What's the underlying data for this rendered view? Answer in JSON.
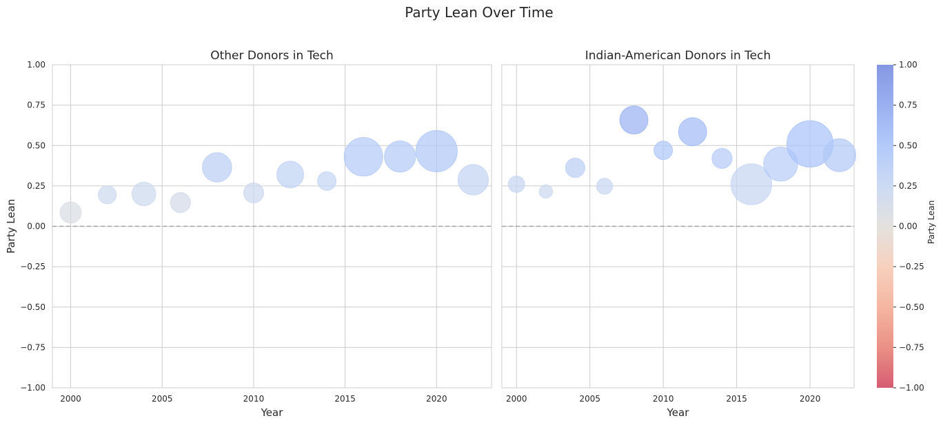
{
  "suptitle": "Party Lean Over Time",
  "colorbar": {
    "label": "Party Lean",
    "range": [
      -1,
      1
    ],
    "ticks": [
      "1.00",
      "0.75",
      "0.50",
      "0.25",
      "0.00",
      "−0.25",
      "−0.50",
      "−0.75",
      "−1.00"
    ],
    "colormap": "coolwarm_r"
  },
  "chart_data": [
    {
      "type": "scatter",
      "title": "Other Donors in Tech",
      "xlabel": "Year",
      "ylabel": "Party Lean",
      "xlim": [
        1999,
        2023
      ],
      "ylim": [
        -1,
        1
      ],
      "grid": true,
      "reference_line_y": 0,
      "xticks": [
        "2000",
        "2005",
        "2010",
        "2015",
        "2020"
      ],
      "yticks": [
        "1.00",
        "0.75",
        "0.50",
        "0.25",
        "0.00",
        "−0.25",
        "−0.50",
        "−0.75",
        "−1.00"
      ],
      "points": [
        {
          "x": 2000,
          "y": 0.085,
          "size": 0.3
        },
        {
          "x": 2002,
          "y": 0.195,
          "size": 0.22
        },
        {
          "x": 2004,
          "y": 0.2,
          "size": 0.38
        },
        {
          "x": 2006,
          "y": 0.147,
          "size": 0.27
        },
        {
          "x": 2008,
          "y": 0.365,
          "size": 0.58
        },
        {
          "x": 2010,
          "y": 0.207,
          "size": 0.27
        },
        {
          "x": 2012,
          "y": 0.32,
          "size": 0.48
        },
        {
          "x": 2014,
          "y": 0.28,
          "size": 0.23
        },
        {
          "x": 2016,
          "y": 0.43,
          "size": 1.0
        },
        {
          "x": 2018,
          "y": 0.432,
          "size": 0.65
        },
        {
          "x": 2020,
          "y": 0.465,
          "size": 1.15
        },
        {
          "x": 2022,
          "y": 0.288,
          "size": 0.62
        }
      ]
    },
    {
      "type": "scatter",
      "title": "Indian-American Donors in Tech",
      "xlabel": "Year",
      "ylabel": "",
      "xlim": [
        1999,
        2023
      ],
      "ylim": [
        -1,
        1
      ],
      "grid": true,
      "reference_line_y": 0,
      "xticks": [
        "2000",
        "2005",
        "2010",
        "2015",
        "2020"
      ],
      "points": [
        {
          "x": 2000,
          "y": 0.26,
          "size": 0.18
        },
        {
          "x": 2002,
          "y": 0.215,
          "size": 0.12
        },
        {
          "x": 2004,
          "y": 0.362,
          "size": 0.25
        },
        {
          "x": 2006,
          "y": 0.248,
          "size": 0.17
        },
        {
          "x": 2008,
          "y": 0.658,
          "size": 0.53
        },
        {
          "x": 2010,
          "y": 0.47,
          "size": 0.23
        },
        {
          "x": 2012,
          "y": 0.585,
          "size": 0.53
        },
        {
          "x": 2014,
          "y": 0.42,
          "size": 0.27
        },
        {
          "x": 2016,
          "y": 0.26,
          "size": 1.12
        },
        {
          "x": 2018,
          "y": 0.385,
          "size": 0.78
        },
        {
          "x": 2020,
          "y": 0.51,
          "size": 1.45
        },
        {
          "x": 2022,
          "y": 0.44,
          "size": 0.72
        }
      ]
    }
  ]
}
